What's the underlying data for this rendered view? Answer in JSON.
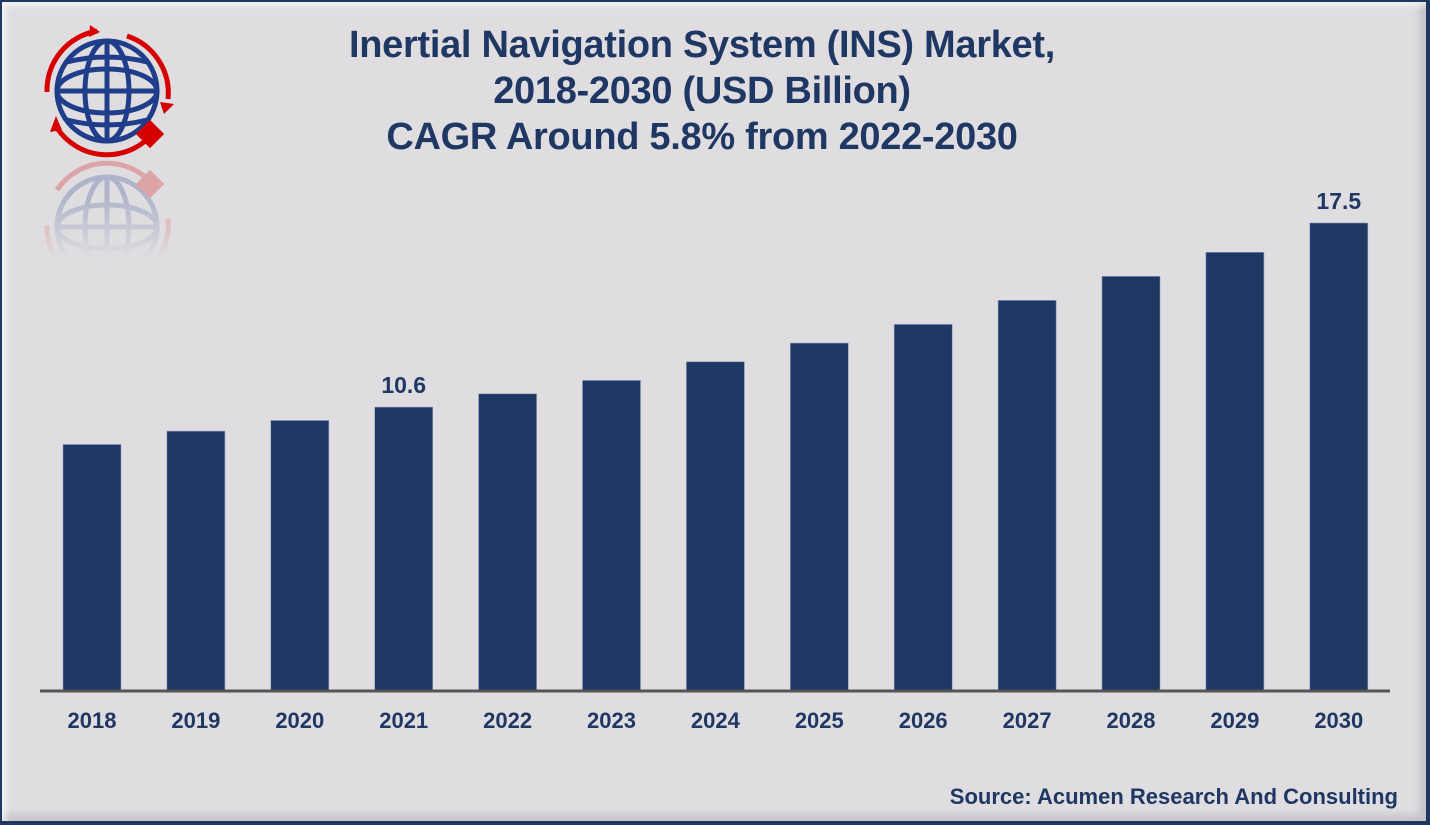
{
  "chart_data": {
    "type": "bar",
    "title": "Inertial Navigation System (INS) Market,",
    "subtitle": "2018-2030 (USD Billion)",
    "subtitle2": "CAGR Around 5.8% from 2022-2030",
    "categories": [
      "2018",
      "2019",
      "2020",
      "2021",
      "2022",
      "2023",
      "2024",
      "2025",
      "2026",
      "2027",
      "2028",
      "2029",
      "2030"
    ],
    "values": [
      9.2,
      9.7,
      10.1,
      10.6,
      11.1,
      11.6,
      12.3,
      13.0,
      13.7,
      14.6,
      15.5,
      16.4,
      17.5
    ],
    "data_labels": {
      "2021": "10.6",
      "2030": "17.5"
    },
    "xlabel": "",
    "ylabel": "",
    "ylim": [
      0,
      17.5
    ],
    "grid": false,
    "bar_color": "#1f3763",
    "axis_color": "#555555"
  },
  "logo": {
    "icon": "globe-arrows-logo-icon",
    "primary_color": "#1f3d8a",
    "accent_color": "#d60000"
  },
  "source": "Source: Acumen Research And Consulting"
}
